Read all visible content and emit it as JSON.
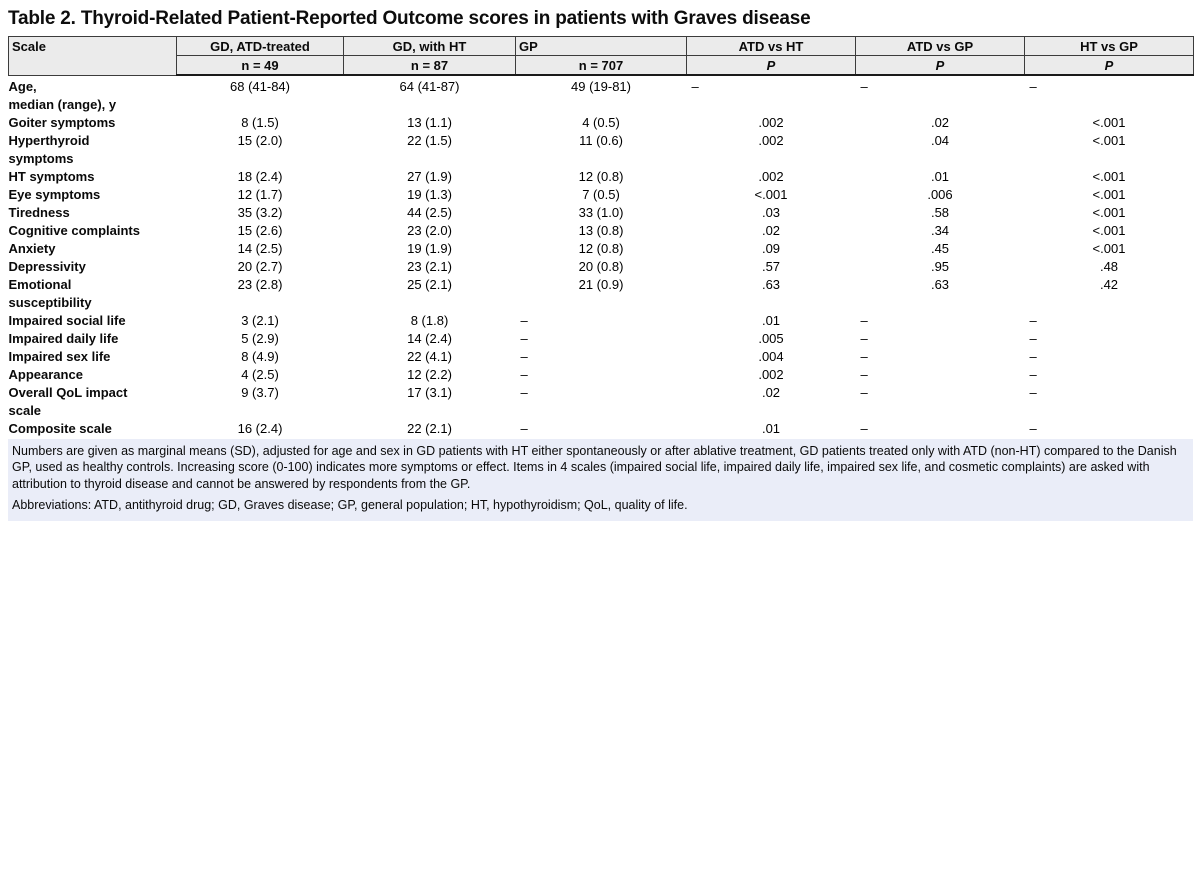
{
  "title": "Table 2. Thyroid-Related Patient-Reported Outcome scores in patients with Graves disease",
  "header": {
    "scale": "Scale",
    "cols": [
      {
        "label": "GD, ATD-treated",
        "sub": "n = 49"
      },
      {
        "label": "GD, with HT",
        "sub": "n = 87"
      },
      {
        "label": "GP",
        "sub": "n = 707"
      },
      {
        "label": "ATD vs HT",
        "sub": "P"
      },
      {
        "label": "ATD vs GP",
        "sub": "P"
      },
      {
        "label": "HT vs GP",
        "sub": "P"
      }
    ]
  },
  "dash": "–",
  "rows": [
    {
      "label": "Age,\nmedian (range), y",
      "cells": [
        "68 (41-84)",
        "64 (41-87)",
        "49 (19-81)",
        "–",
        "–",
        "–"
      ]
    },
    {
      "label": "Goiter symptoms",
      "cells": [
        "8 (1.5)",
        "13 (1.1)",
        "4 (0.5)",
        ".002",
        ".02",
        "<.001"
      ]
    },
    {
      "label": "Hyperthyroid\nsymptoms",
      "cells": [
        "15 (2.0)",
        "22 (1.5)",
        "11 (0.6)",
        ".002",
        ".04",
        "<.001"
      ]
    },
    {
      "label": "HT symptoms",
      "cells": [
        "18 (2.4)",
        "27 (1.9)",
        "12 (0.8)",
        ".002",
        ".01",
        "<.001"
      ]
    },
    {
      "label": "Eye symptoms",
      "cells": [
        "12 (1.7)",
        "19 (1.3)",
        "7 (0.5)",
        "<.001",
        ".006",
        "<.001"
      ]
    },
    {
      "label": "Tiredness",
      "cells": [
        "35 (3.2)",
        "44 (2.5)",
        "33 (1.0)",
        ".03",
        ".58",
        "<.001"
      ]
    },
    {
      "label": "Cognitive complaints",
      "cells": [
        "15 (2.6)",
        "23 (2.0)",
        "13 (0.8)",
        ".02",
        ".34",
        "<.001"
      ]
    },
    {
      "label": "Anxiety",
      "cells": [
        "14 (2.5)",
        "19 (1.9)",
        "12 (0.8)",
        ".09",
        ".45",
        "<.001"
      ]
    },
    {
      "label": "Depressivity",
      "cells": [
        "20 (2.7)",
        "23 (2.1)",
        "20 (0.8)",
        ".57",
        ".95",
        ".48"
      ]
    },
    {
      "label": "Emotional\nsusceptibility",
      "cells": [
        "23 (2.8)",
        "25 (2.1)",
        "21 (0.9)",
        ".63",
        ".63",
        ".42"
      ]
    },
    {
      "label": "Impaired social life",
      "cells": [
        "3 (2.1)",
        "8 (1.8)",
        "–",
        ".01",
        "–",
        "–"
      ]
    },
    {
      "label": "Impaired daily life",
      "cells": [
        "5 (2.9)",
        "14 (2.4)",
        "–",
        ".005",
        "–",
        "–"
      ]
    },
    {
      "label": "Impaired sex life",
      "cells": [
        "8 (4.9)",
        "22 (4.1)",
        "–",
        ".004",
        "–",
        "–"
      ]
    },
    {
      "label": "Appearance",
      "cells": [
        "4 (2.5)",
        "12 (2.2)",
        "–",
        ".002",
        "–",
        "–"
      ]
    },
    {
      "label": "Overall QoL impact\nscale",
      "cells": [
        "9 (3.7)",
        "17 (3.1)",
        "–",
        ".02",
        "–",
        "–"
      ]
    },
    {
      "label": "Composite scale",
      "cells": [
        "16 (2.4)",
        "22 (2.1)",
        "–",
        ".01",
        "–",
        "–"
      ]
    }
  ],
  "footnote": {
    "note": "Numbers are given as marginal means (SD), adjusted for age and sex in GD patients with HT either spontaneously or after ablative treatment, GD patients treated only with ATD (non-HT) compared to the Danish GP, used as healthy controls. Increasing score (0-100) indicates more symptoms or effect. Items in 4 scales (impaired social life, impaired daily life, impaired sex life, and cosmetic complaints) are asked with attribution to thyroid disease and cannot be answered by respondents from the GP.",
    "abbreviations": "Abbreviations: ATD, antithyroid drug; GD, Graves disease; GP, general population; HT, hypothyroidism; QoL, quality of life."
  },
  "colors": {
    "header_bg": "#ebebeb",
    "footnote_bg": "#eaedf8",
    "border": "#3c3c3c"
  }
}
